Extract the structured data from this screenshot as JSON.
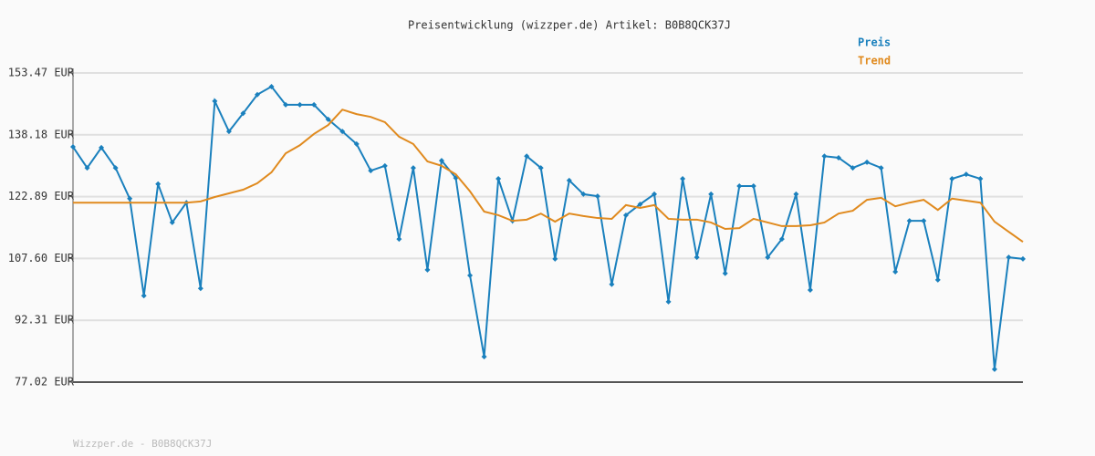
{
  "chart_data": {
    "type": "line",
    "title": "Preisentwicklung (wizzper.de) Artikel: B0B8QCK37J",
    "footer": "Wizzper.de - B0B8QCK37J",
    "categories": [
      null,
      null,
      null,
      null,
      null,
      null,
      null,
      null,
      null,
      null,
      null,
      null,
      null,
      null,
      null,
      null,
      null,
      null,
      null,
      null,
      null,
      null,
      null,
      null,
      null,
      null,
      null,
      null,
      null,
      null,
      null,
      null,
      null,
      null,
      null,
      null,
      null,
      null,
      null,
      null,
      null,
      null,
      null,
      null,
      null,
      null,
      null,
      null,
      null,
      null,
      null,
      null,
      null,
      null,
      null,
      null,
      null,
      null,
      null,
      null,
      null,
      null,
      null,
      null,
      null,
      null,
      null,
      null
    ],
    "series": [
      {
        "name": "Preis",
        "color": "#1a80bd",
        "markers": true,
        "values": [
          135.2,
          130.0,
          135.0,
          130.0,
          122.4,
          98.4,
          126.0,
          116.5,
          121.4,
          100.2,
          146.5,
          139.0,
          143.5,
          148.1,
          150.1,
          145.6,
          145.6,
          145.6,
          142.0,
          139.0,
          135.9,
          129.3,
          130.5,
          112.4,
          130.0,
          104.8,
          131.8,
          127.5,
          103.4,
          83.3,
          127.3,
          116.9,
          132.9,
          130.0,
          107.5,
          126.9,
          123.5,
          123.0,
          101.2,
          118.3,
          121.0,
          123.5,
          96.9,
          127.3,
          107.9,
          123.5,
          103.9,
          125.5,
          125.5,
          107.9,
          112.4,
          123.5,
          99.8,
          132.9,
          132.5,
          130.0,
          131.4,
          130.0,
          104.3,
          116.9,
          116.9,
          102.3,
          127.3,
          128.4,
          127.3,
          80.2,
          107.9,
          107.5
        ]
      },
      {
        "name": "Trend",
        "color": "#e08a1e",
        "markers": false,
        "values": [
          121.4,
          121.4,
          121.4,
          121.4,
          121.4,
          121.4,
          121.4,
          121.4,
          121.4,
          121.7,
          122.8,
          123.7,
          124.6,
          126.2,
          128.9,
          133.6,
          135.6,
          138.4,
          140.6,
          144.4,
          143.3,
          142.6,
          141.3,
          137.7,
          135.9,
          131.6,
          130.5,
          128.4,
          124.2,
          119.2,
          118.3,
          116.9,
          117.2,
          118.7,
          116.7,
          118.7,
          118.1,
          117.6,
          117.4,
          120.8,
          120.1,
          120.8,
          117.4,
          117.2,
          117.2,
          116.5,
          114.9,
          115.1,
          117.4,
          116.5,
          115.6,
          115.6,
          115.8,
          116.5,
          118.7,
          119.4,
          122.1,
          122.6,
          120.5,
          121.4,
          122.1,
          119.6,
          122.4,
          121.9,
          121.4,
          116.7,
          114.2,
          111.7
        ]
      }
    ],
    "ylim": [
      77.02,
      153.47
    ],
    "yticks": [
      {
        "value": 77.02,
        "label": "77.02 EUR"
      },
      {
        "value": 92.31,
        "label": "92.31 EUR"
      },
      {
        "value": 107.6,
        "label": "107.60 EUR"
      },
      {
        "value": 122.89,
        "label": "122.89 EUR"
      },
      {
        "value": 138.18,
        "label": "138.18 EUR"
      },
      {
        "value": 153.47,
        "label": "153.47 EUR"
      }
    ],
    "grid": true
  }
}
